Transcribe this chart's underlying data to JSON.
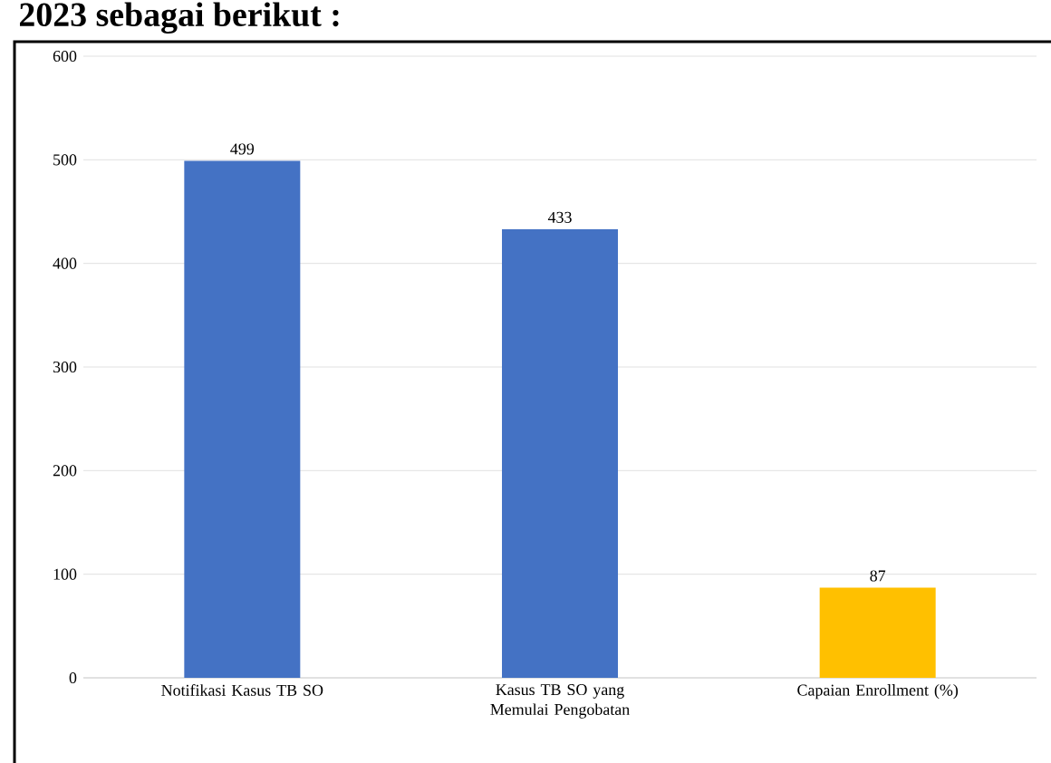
{
  "chart_data": {
    "type": "bar",
    "categories": [
      "Notifikasi Kasus TB SO",
      "Kasus TB SO yang Memulai Pengobatan",
      "Capaian Enrollment (%)"
    ],
    "values": [
      499,
      433,
      87
    ],
    "colors": [
      "#4472c4",
      "#4472c4",
      "#ffc000"
    ],
    "ylim": [
      0,
      600
    ],
    "yticks": [
      0,
      100,
      200,
      300,
      400,
      500,
      600
    ],
    "grid": "y",
    "data_labels": true,
    "annotations": [
      "2023 sebagai berikut :"
    ]
  }
}
